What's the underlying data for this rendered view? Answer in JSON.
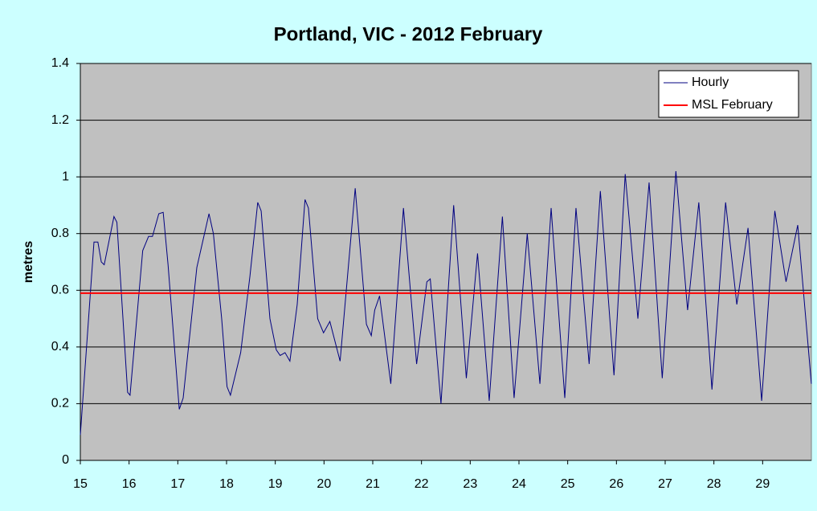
{
  "chart_data": {
    "type": "line",
    "title": "Portland, VIC - 2012 February",
    "y_label": "metres",
    "xlim": [
      15,
      30
    ],
    "xticks": [
      15,
      16,
      17,
      18,
      19,
      20,
      21,
      22,
      23,
      24,
      25,
      26,
      27,
      28,
      29
    ],
    "ylim": [
      0,
      1.4
    ],
    "yticks": [
      0,
      0.2,
      0.4,
      0.6,
      0.8,
      1,
      1.2,
      1.4
    ],
    "grid": true,
    "legend": "top-right",
    "series": [
      {
        "name": "Hourly",
        "color": "#000080",
        "x": [
          15,
          15.28,
          15.36,
          15.43,
          15.49,
          15.69,
          15.75,
          15.97,
          16.02,
          16.28,
          16.4,
          16.48,
          16.61,
          16.7,
          16.8,
          17.03,
          17.11,
          17.39,
          17.64,
          17.73,
          17.9,
          18.01,
          18.08,
          18.29,
          18.48,
          18.64,
          18.71,
          18.89,
          19.02,
          19.1,
          19.2,
          19.3,
          19.45,
          19.61,
          19.68,
          19.87,
          19.99,
          20.12,
          20.33,
          20.64,
          20.87,
          20.97,
          21.04,
          21.14,
          21.37,
          21.63,
          21.9,
          22.11,
          22.18,
          22.4,
          22.66,
          22.92,
          23.15,
          23.39,
          23.66,
          23.9,
          24.17,
          24.43,
          24.66,
          24.94,
          25.17,
          25.44,
          25.67,
          25.95,
          26.18,
          26.44,
          26.67,
          26.94,
          27.22,
          27.46,
          27.69,
          27.96,
          28.24,
          28.47,
          28.7,
          28.98,
          29.25,
          29.48,
          29.72,
          30
        ],
        "values": [
          0.09,
          0.77,
          0.77,
          0.7,
          0.69,
          0.86,
          0.84,
          0.24,
          0.23,
          0.74,
          0.79,
          0.79,
          0.87,
          0.875,
          0.69,
          0.18,
          0.22,
          0.68,
          0.87,
          0.8,
          0.5,
          0.26,
          0.23,
          0.38,
          0.65,
          0.91,
          0.88,
          0.5,
          0.39,
          0.37,
          0.38,
          0.35,
          0.55,
          0.92,
          0.89,
          0.5,
          0.45,
          0.49,
          0.35,
          0.96,
          0.48,
          0.44,
          0.53,
          0.58,
          0.27,
          0.89,
          0.34,
          0.63,
          0.64,
          0.2,
          0.9,
          0.29,
          0.73,
          0.21,
          0.86,
          0.22,
          0.8,
          0.27,
          0.89,
          0.22,
          0.89,
          0.34,
          0.95,
          0.3,
          1.01,
          0.5,
          0.98,
          0.29,
          1.02,
          0.53,
          0.91,
          0.25,
          0.91,
          0.55,
          0.82,
          0.21,
          0.88,
          0.63,
          0.83,
          0.27
        ]
      },
      {
        "name": "MSL February",
        "color": "#ff0000",
        "x": [
          15,
          30
        ],
        "values": [
          0.59,
          0.59
        ]
      }
    ]
  }
}
